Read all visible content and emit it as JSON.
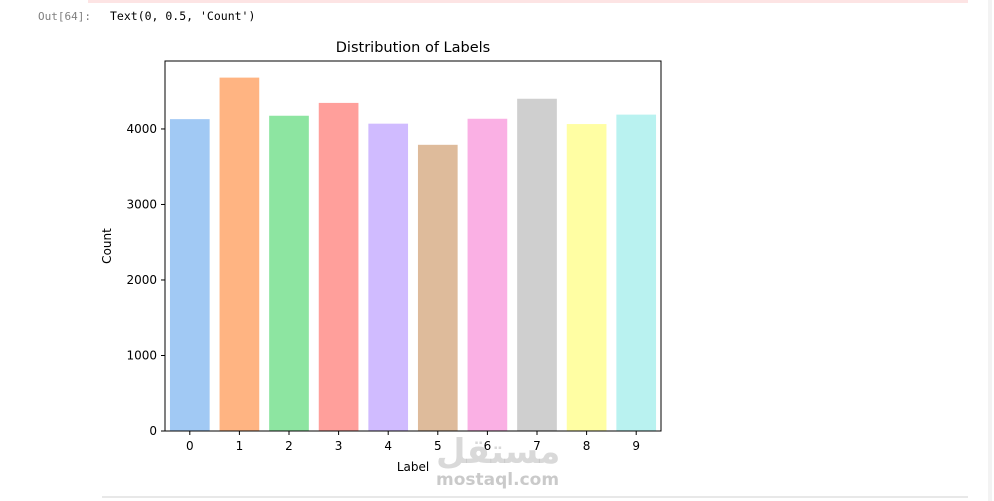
{
  "cell": {
    "prompt": "Out[64]:",
    "output_text": "Text(0, 0.5, 'Count')"
  },
  "watermark": {
    "logo_text": "مستقل",
    "site": "mostaql.com"
  },
  "chart_data": {
    "type": "bar",
    "title": "Distribution of Labels",
    "xlabel": "Label",
    "ylabel": "Count",
    "categories": [
      "0",
      "1",
      "2",
      "3",
      "4",
      "5",
      "6",
      "7",
      "8",
      "9"
    ],
    "values": [
      4130,
      4680,
      4175,
      4345,
      4070,
      3790,
      4135,
      4400,
      4065,
      4190
    ],
    "ylim": [
      0,
      4900
    ],
    "yticks": [
      0,
      1000,
      2000,
      3000,
      4000
    ],
    "colors": [
      "#a1c9f4",
      "#ffb482",
      "#8de5a1",
      "#ff9f9b",
      "#d0bbff",
      "#debb9b",
      "#fab0e4",
      "#cfcfcf",
      "#fffea3",
      "#b9f2f0"
    ],
    "grid": false,
    "legend": "none"
  }
}
